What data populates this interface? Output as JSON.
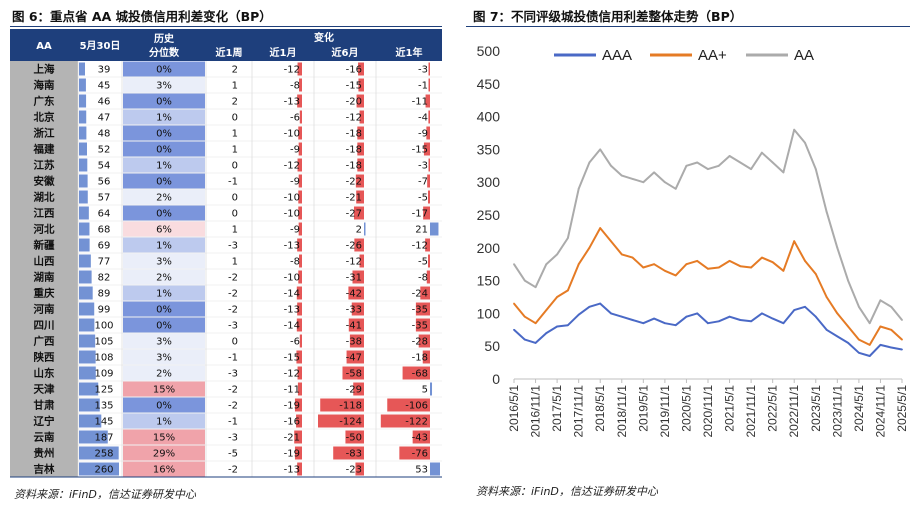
{
  "left": {
    "title": "图 6：重点省 AA 城投债信用利差变化（BP）",
    "source": "资料来源：iFinD，信达证券研发中心",
    "table": {
      "headers": {
        "col0": "AA",
        "col1": "5月30日",
        "col2_line1": "历史",
        "col2_line2": "分位数",
        "change_group": "变化",
        "col3": "近1周",
        "col4": "近1月",
        "col5": "近6月",
        "col6": "近1年"
      },
      "rows": [
        {
          "province": "上海",
          "value": 39,
          "percentile": "0%",
          "w1": 2,
          "m1": -12,
          "m6": -16,
          "y1": -3
        },
        {
          "province": "海南",
          "value": 45,
          "percentile": "3%",
          "w1": 1,
          "m1": -8,
          "m6": -15,
          "y1": -1
        },
        {
          "province": "广东",
          "value": 46,
          "percentile": "0%",
          "w1": 2,
          "m1": -13,
          "m6": -20,
          "y1": -11
        },
        {
          "province": "北京",
          "value": 47,
          "percentile": "1%",
          "w1": 0,
          "m1": -6,
          "m6": -12,
          "y1": -4
        },
        {
          "province": "浙江",
          "value": 48,
          "percentile": "0%",
          "w1": 1,
          "m1": -10,
          "m6": -18,
          "y1": -9
        },
        {
          "province": "福建",
          "value": 52,
          "percentile": "0%",
          "w1": 1,
          "m1": -9,
          "m6": -18,
          "y1": -15
        },
        {
          "province": "江苏",
          "value": 54,
          "percentile": "1%",
          "w1": 0,
          "m1": -12,
          "m6": -18,
          "y1": -3
        },
        {
          "province": "安徽",
          "value": 56,
          "percentile": "0%",
          "w1": -1,
          "m1": -9,
          "m6": -22,
          "y1": -7
        },
        {
          "province": "湖北",
          "value": 57,
          "percentile": "2%",
          "w1": 0,
          "m1": -10,
          "m6": -21,
          "y1": -5
        },
        {
          "province": "江西",
          "value": 64,
          "percentile": "0%",
          "w1": 0,
          "m1": -10,
          "m6": -27,
          "y1": -17
        },
        {
          "province": "河北",
          "value": 68,
          "percentile": "6%",
          "w1": 1,
          "m1": -9,
          "m6": 2,
          "y1": 21
        },
        {
          "province": "新疆",
          "value": 69,
          "percentile": "1%",
          "w1": -3,
          "m1": -13,
          "m6": -26,
          "y1": -12
        },
        {
          "province": "山西",
          "value": 77,
          "percentile": "3%",
          "w1": 1,
          "m1": -8,
          "m6": -12,
          "y1": -5
        },
        {
          "province": "湖南",
          "value": 82,
          "percentile": "2%",
          "w1": -2,
          "m1": -10,
          "m6": -31,
          "y1": -8
        },
        {
          "province": "重庆",
          "value": 89,
          "percentile": "1%",
          "w1": -2,
          "m1": -14,
          "m6": -42,
          "y1": -24
        },
        {
          "province": "河南",
          "value": 99,
          "percentile": "0%",
          "w1": -2,
          "m1": -13,
          "m6": -33,
          "y1": -35
        },
        {
          "province": "四川",
          "value": 100,
          "percentile": "0%",
          "w1": -3,
          "m1": -14,
          "m6": -41,
          "y1": -35
        },
        {
          "province": "广西",
          "value": 105,
          "percentile": "3%",
          "w1": 0,
          "m1": -6,
          "m6": -38,
          "y1": -28
        },
        {
          "province": "陕西",
          "value": 108,
          "percentile": "3%",
          "w1": -1,
          "m1": -15,
          "m6": -47,
          "y1": -18
        },
        {
          "province": "山东",
          "value": 109,
          "percentile": "2%",
          "w1": -3,
          "m1": -12,
          "m6": -58,
          "y1": -68
        },
        {
          "province": "天津",
          "value": 125,
          "percentile": "15%",
          "w1": -2,
          "m1": -11,
          "m6": -29,
          "y1": 5
        },
        {
          "province": "甘肃",
          "value": 135,
          "percentile": "0%",
          "w1": -2,
          "m1": -19,
          "m6": -118,
          "y1": -106
        },
        {
          "province": "辽宁",
          "value": 145,
          "percentile": "1%",
          "w1": -1,
          "m1": -16,
          "m6": -124,
          "y1": -122
        },
        {
          "province": "云南",
          "value": 187,
          "percentile": "15%",
          "w1": -3,
          "m1": -21,
          "m6": -50,
          "y1": -43
        },
        {
          "province": "贵州",
          "value": 258,
          "percentile": "29%",
          "w1": -5,
          "m1": -19,
          "m6": -83,
          "y1": -76
        },
        {
          "province": "吉林",
          "value": 260,
          "percentile": "16%",
          "w1": -2,
          "m1": -13,
          "m6": -23,
          "y1": 53
        }
      ]
    },
    "colors": {
      "header_bg": "#1e3f7c",
      "province_bg": "#b4b4b4",
      "bar_blue": "#5b7fcc",
      "bar_red": "#e23a3a",
      "cell_blue": "#7b95dc",
      "cell_pink": "#f0a3aa"
    }
  },
  "right": {
    "title": "图 7：不同评级城投债信用利差整体走势（BP）",
    "source": "资料来源：iFinD，信达证券研发中心",
    "chart_data": {
      "type": "line",
      "title": "",
      "xlabel": "",
      "ylabel": "",
      "ylim": [
        0,
        500
      ],
      "yticks": [
        0,
        50,
        100,
        150,
        200,
        250,
        300,
        350,
        400,
        450,
        500
      ],
      "xticks": [
        "2016/5/1",
        "2016/11/1",
        "2017/5/1",
        "2017/11/1",
        "2018/5/1",
        "2018/11/1",
        "2019/5/1",
        "2019/11/1",
        "2020/5/1",
        "2020/11/1",
        "2021/5/1",
        "2021/11/1",
        "2022/5/1",
        "2022/11/1",
        "2023/5/1",
        "2023/11/1",
        "2024/5/1",
        "2024/11/1",
        "2025/5/1"
      ],
      "legend_position": "top-left",
      "grid": false,
      "x": [
        "2016-05",
        "2016-08",
        "2016-11",
        "2017-02",
        "2017-05",
        "2017-08",
        "2017-11",
        "2018-02",
        "2018-05",
        "2018-08",
        "2018-11",
        "2019-02",
        "2019-05",
        "2019-08",
        "2019-11",
        "2020-02",
        "2020-05",
        "2020-08",
        "2020-11",
        "2021-02",
        "2021-05",
        "2021-08",
        "2021-11",
        "2022-02",
        "2022-05",
        "2022-08",
        "2022-11",
        "2023-02",
        "2023-05",
        "2023-08",
        "2023-11",
        "2024-02",
        "2024-05",
        "2024-08",
        "2024-11",
        "2025-02",
        "2025-05"
      ],
      "series": [
        {
          "name": "AAA",
          "color": "#4a69c6",
          "values": [
            75,
            60,
            55,
            70,
            80,
            82,
            98,
            110,
            115,
            100,
            95,
            90,
            85,
            92,
            85,
            82,
            95,
            100,
            85,
            88,
            95,
            90,
            88,
            100,
            92,
            85,
            105,
            110,
            95,
            75,
            65,
            55,
            40,
            35,
            52,
            48,
            45
          ]
        },
        {
          "name": "AA+",
          "color": "#e57b25",
          "values": [
            115,
            95,
            85,
            105,
            125,
            135,
            175,
            200,
            230,
            210,
            190,
            185,
            170,
            175,
            165,
            158,
            175,
            180,
            168,
            170,
            180,
            172,
            170,
            185,
            178,
            165,
            210,
            180,
            160,
            125,
            100,
            80,
            60,
            52,
            80,
            75,
            60
          ]
        },
        {
          "name": "AA",
          "color": "#ababab",
          "values": [
            175,
            150,
            140,
            175,
            190,
            215,
            290,
            330,
            350,
            325,
            310,
            305,
            300,
            315,
            300,
            290,
            325,
            330,
            320,
            325,
            340,
            330,
            320,
            345,
            330,
            315,
            380,
            360,
            320,
            255,
            200,
            150,
            110,
            85,
            120,
            110,
            90
          ]
        }
      ]
    }
  }
}
